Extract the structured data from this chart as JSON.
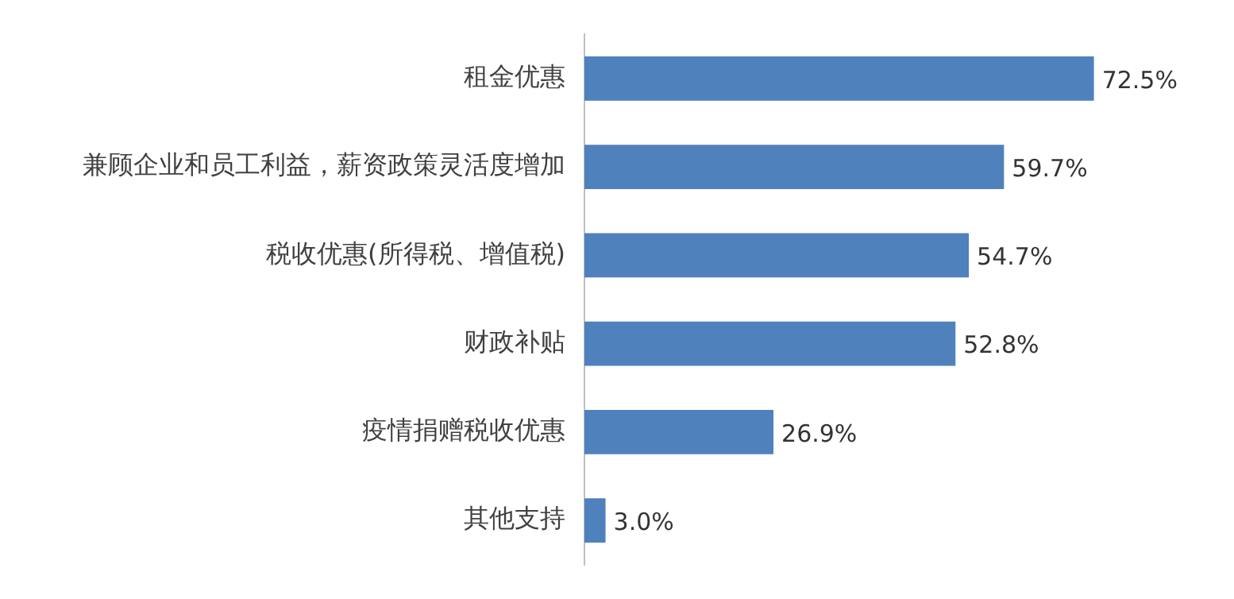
{
  "chart_data": {
    "type": "bar",
    "orientation": "horizontal",
    "categories": [
      "租金优惠",
      "兼顾企业和员工利益，薪资政策灵活度增加",
      "税收优惠(所得税、增值税)",
      "财政补贴",
      "疫情捐赠税收优惠",
      "其他支持"
    ],
    "values": [
      72.5,
      59.7,
      54.7,
      52.8,
      26.9,
      3.0
    ],
    "value_labels": [
      "72.5%",
      "59.7%",
      "54.7%",
      "52.8%",
      "26.9%",
      "3.0%"
    ],
    "color": "#4f81bd",
    "legend": false
  }
}
